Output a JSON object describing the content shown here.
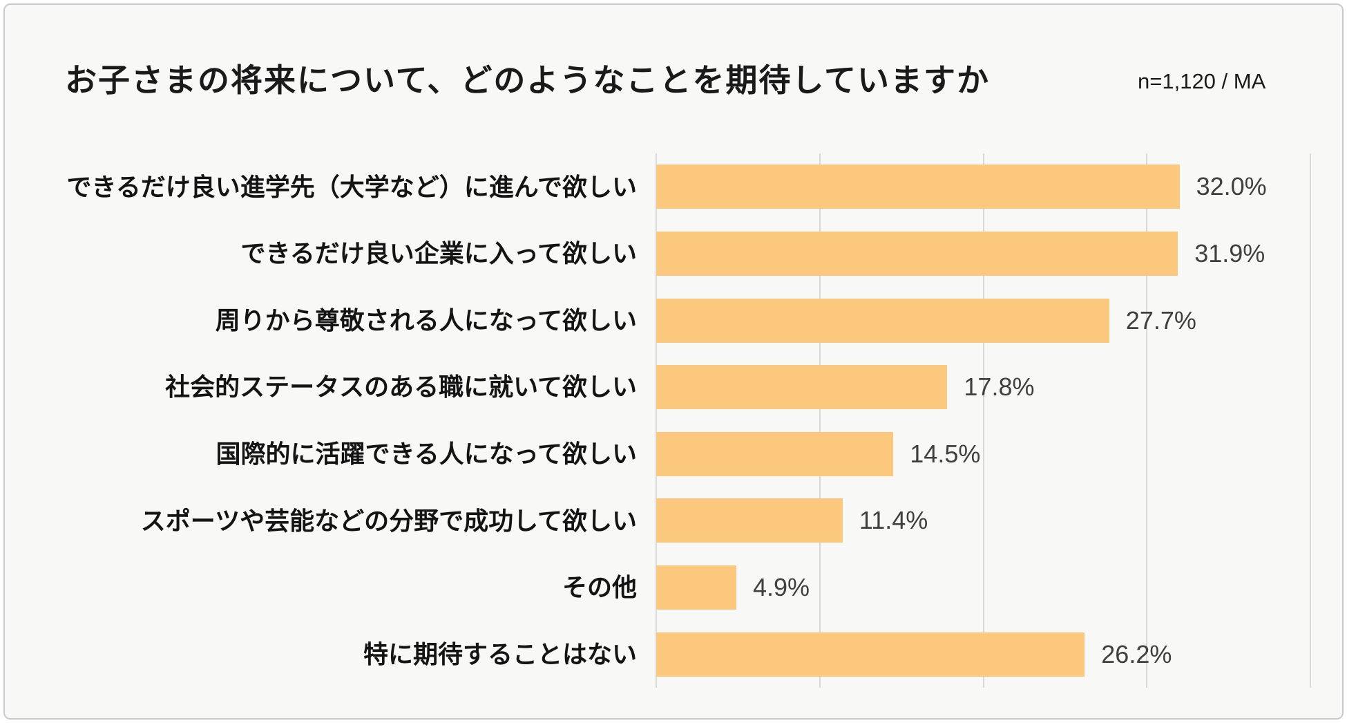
{
  "header": {
    "title": "お子さまの将来について、どのようなことを期待していますか",
    "sample_note": "n=1,120 / MA"
  },
  "chart_data": {
    "type": "bar",
    "orientation": "horizontal",
    "title": "お子さまの将来について、どのようなことを期待していますか",
    "subtitle": "n=1,120 / MA",
    "categories": [
      "できるだけ良い進学先（大学など）に進んで欲しい",
      "できるだけ良い企業に入って欲しい",
      "周りから尊敬される人になって欲しい",
      "社会的ステータスのある職に就いて欲しい",
      "国際的に活躍できる人になって欲しい",
      "スポーツや芸能などの分野で成功して欲しい",
      "その他",
      "特に期待することはない"
    ],
    "values": [
      32.0,
      31.9,
      27.7,
      17.8,
      14.5,
      11.4,
      4.9,
      26.2
    ],
    "value_labels": [
      "32.0%",
      "31.9%",
      "27.7%",
      "17.8%",
      "14.5%",
      "11.4%",
      "4.9%",
      "26.2%"
    ],
    "xlabel": "",
    "ylabel": "",
    "xlim": [
      0,
      40
    ],
    "gridline_interval": 10,
    "grid": "vertical-only",
    "legend": "none",
    "bar_color": "#fbc87d",
    "grid_color": "#d9d9d9",
    "value_text_color": "#3f3f3f",
    "label_text_color": "#141414"
  }
}
